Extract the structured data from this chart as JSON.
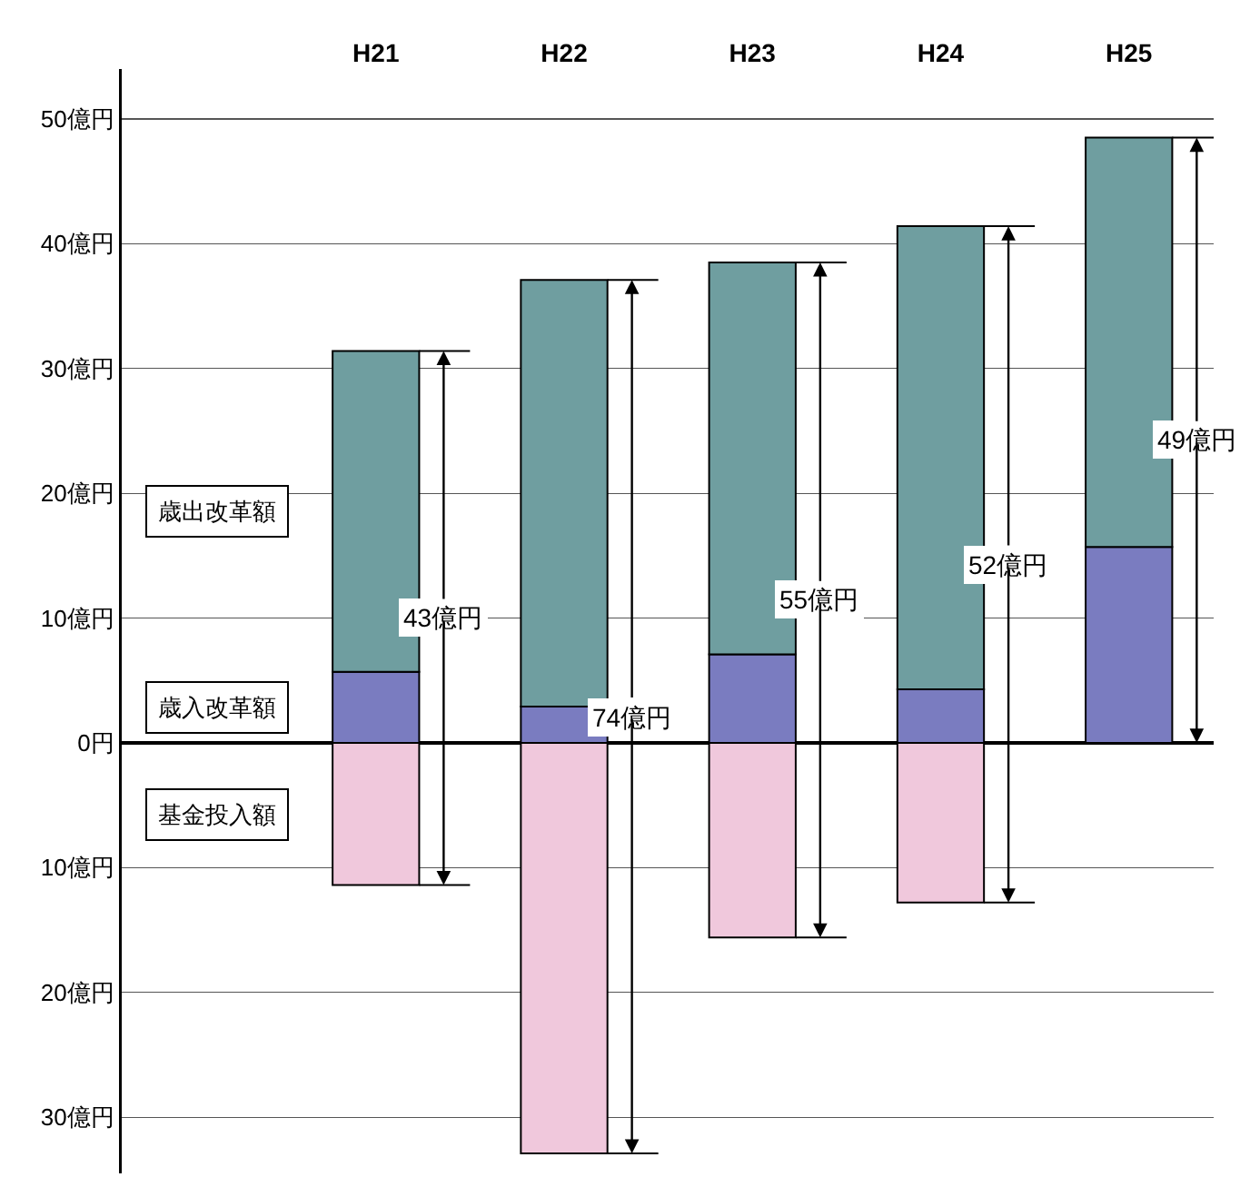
{
  "chart_data": {
    "type": "bar",
    "stacked": true,
    "categories": [
      "H21",
      "H22",
      "H23",
      "H24",
      "H25"
    ],
    "series": [
      {
        "name": "歳入改革額",
        "color": "#7a7cc0",
        "values": [
          5.7,
          2.9,
          7.1,
          4.3,
          15.7
        ]
      },
      {
        "name": "歳出改革額",
        "color": "#6f9ea0",
        "values": [
          25.7,
          34.2,
          31.4,
          37.1,
          32.8
        ]
      },
      {
        "name": "基金投入額",
        "color": "#f0c8dc",
        "values": [
          -11.4,
          -32.9,
          -15.6,
          -12.8,
          null
        ]
      }
    ],
    "ylim": [
      -34.5,
      54
    ],
    "yticks": [
      {
        "value": 50,
        "label": "50億円"
      },
      {
        "value": 40,
        "label": "40億円"
      },
      {
        "value": 30,
        "label": "30億円"
      },
      {
        "value": 20,
        "label": "20億円"
      },
      {
        "value": 10,
        "label": "10億円"
      },
      {
        "value": 0,
        "label": "0円"
      },
      {
        "value": -10,
        "label": "10億円"
      },
      {
        "value": -20,
        "label": "20億円"
      },
      {
        "value": -30,
        "label": "30億円"
      }
    ],
    "grid": "y",
    "legend": false,
    "annotations": [
      "43億円",
      "74億円",
      "55億円",
      "52億円",
      "49億円"
    ]
  }
}
